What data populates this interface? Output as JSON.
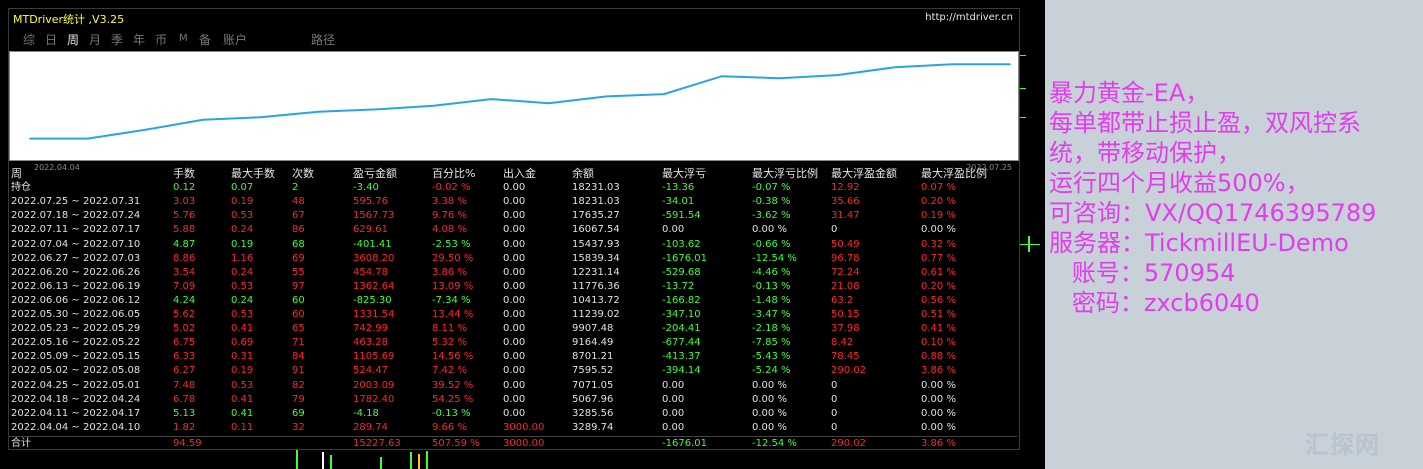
{
  "window": {
    "title": "MTDriver统计 ,V3.25",
    "url": "http://mtdriver.cn"
  },
  "tabs": [
    {
      "label": "综",
      "active": false
    },
    {
      "label": "日",
      "active": false
    },
    {
      "label": "周",
      "active": true
    },
    {
      "label": "月",
      "active": false
    },
    {
      "label": "季",
      "active": false
    },
    {
      "label": "年",
      "active": false
    },
    {
      "label": "币",
      "active": false
    },
    {
      "label": "M",
      "active": false
    },
    {
      "label": "备",
      "active": false
    },
    {
      "label": "账户",
      "active": false
    },
    {
      "label": "路径",
      "active": false
    }
  ],
  "chart_data": {
    "type": "line",
    "x_start_label": "2022.04.04",
    "x_end_label": "2022.07.25",
    "series": [
      {
        "color": "#29a3e6",
        "values": [
          3289.74,
          3285.56,
          5067.96,
          7071.05,
          7595.52,
          8701.21,
          9164.49,
          9907.48,
          11239.02,
          10413.72,
          11776.36,
          12231.14,
          15839.34,
          15437.93,
          16067.54,
          17635.27,
          18231.03,
          18231.03
        ]
      }
    ]
  },
  "table": {
    "headers": [
      "周",
      "手数",
      "最大手数",
      "次数",
      "盈亏金额",
      "百分比%",
      "出入金",
      "余额",
      "最大浮亏",
      "最大浮亏比例",
      "最大浮盈金额",
      "最大浮盈比例"
    ],
    "holding": {
      "label": "持仓",
      "cells": [
        "0.12",
        "0.07",
        "2",
        "-3.40",
        "-0.02 %",
        "0.00",
        "18231.03",
        "-13.36",
        "-0.07 %",
        "12.92",
        "0.07 %"
      ]
    },
    "rows": [
      {
        "week": "2022.07.25 ~ 2022.07.31",
        "cells": [
          "3.03",
          "0.19",
          "48",
          "595.76",
          "3.38 %",
          "0.00",
          "18231.03",
          "-34.01",
          "-0.38 %",
          "35.66",
          "0.20 %"
        ],
        "win": false
      },
      {
        "week": "2022.07.18 ~ 2022.07.24",
        "cells": [
          "5.76",
          "0.53",
          "67",
          "1567.73",
          "9.76 %",
          "0.00",
          "17635.27",
          "-591.54",
          "-3.62 %",
          "31.47",
          "0.19 %"
        ],
        "win": false
      },
      {
        "week": "2022.07.11 ~ 2022.07.17",
        "cells": [
          "5.88",
          "0.24",
          "86",
          "629.61",
          "4.08 %",
          "0.00",
          "16067.54",
          "0.00",
          "0.00 %",
          "0",
          "0.00 %"
        ],
        "win": false
      },
      {
        "week": "2022.07.04 ~ 2022.07.10",
        "cells": [
          "4.87",
          "0.19",
          "68",
          "-401.41",
          "-2.53 %",
          "0.00",
          "15437.93",
          "-103.62",
          "-0.66 %",
          "50.49",
          "0.32 %"
        ],
        "win": true
      },
      {
        "week": "2022.06.27 ~ 2022.07.03",
        "cells": [
          "8.86",
          "1.16",
          "69",
          "3608.20",
          "29.50 %",
          "0.00",
          "15839.34",
          "-1676.01",
          "-12.54 %",
          "96.78",
          "0.77 %"
        ],
        "win": false
      },
      {
        "week": "2022.06.20 ~ 2022.06.26",
        "cells": [
          "3.54",
          "0.24",
          "55",
          "454.78",
          "3.86 %",
          "0.00",
          "12231.14",
          "-529.68",
          "-4.46 %",
          "72.24",
          "0.61 %"
        ],
        "win": false
      },
      {
        "week": "2022.06.13 ~ 2022.06.19",
        "cells": [
          "7.09",
          "0.53",
          "97",
          "1362.64",
          "13.09 %",
          "0.00",
          "11776.36",
          "-13.72",
          "-0.13 %",
          "21.08",
          "0.20 %"
        ],
        "win": false
      },
      {
        "week": "2022.06.06 ~ 2022.06.12",
        "cells": [
          "4.24",
          "0.24",
          "60",
          "-825.30",
          "-7.34 %",
          "0.00",
          "10413.72",
          "-166.82",
          "-1.48 %",
          "63.2",
          "0.56 %"
        ],
        "win": true
      },
      {
        "week": "2022.05.30 ~ 2022.06.05",
        "cells": [
          "5.62",
          "0.53",
          "60",
          "1331.54",
          "13.44 %",
          "0.00",
          "11239.02",
          "-347.10",
          "-3.47 %",
          "50.15",
          "0.51 %"
        ],
        "win": false
      },
      {
        "week": "2022.05.23 ~ 2022.05.29",
        "cells": [
          "5.02",
          "0.41",
          "65",
          "742.99",
          "8.11 %",
          "0.00",
          "9907.48",
          "-204.41",
          "-2.18 %",
          "37.98",
          "0.41 %"
        ],
        "win": false
      },
      {
        "week": "2022.05.16 ~ 2022.05.22",
        "cells": [
          "6.75",
          "0.69",
          "71",
          "463.28",
          "5.32 %",
          "0.00",
          "9164.49",
          "-677.44",
          "-7.85 %",
          "8.42",
          "0.10 %"
        ],
        "win": false
      },
      {
        "week": "2022.05.09 ~ 2022.05.15",
        "cells": [
          "6.33",
          "0.31",
          "84",
          "1105.69",
          "14.56 %",
          "0.00",
          "8701.21",
          "-413.37",
          "-5.43 %",
          "78.45",
          "0.88 %"
        ],
        "win": false
      },
      {
        "week": "2022.05.02 ~ 2022.05.08",
        "cells": [
          "6.27",
          "0.19",
          "91",
          "524.47",
          "7.42 %",
          "0.00",
          "7595.52",
          "-394.14",
          "-5.24 %",
          "290.02",
          "3.86 %"
        ],
        "win": false
      },
      {
        "week": "2022.04.25 ~ 2022.05.01",
        "cells": [
          "7.48",
          "0.53",
          "82",
          "2003.09",
          "39.52 %",
          "0.00",
          "7071.05",
          "0.00",
          "0.00 %",
          "0",
          "0.00 %"
        ],
        "win": false
      },
      {
        "week": "2022.04.18 ~ 2022.04.24",
        "cells": [
          "6.78",
          "0.41",
          "79",
          "1782.40",
          "54.25 %",
          "0.00",
          "5067.96",
          "0.00",
          "0.00 %",
          "0",
          "0.00 %"
        ],
        "win": false
      },
      {
        "week": "2022.04.11 ~ 2022.04.17",
        "cells": [
          "5.13",
          "0.41",
          "69",
          "-4.18",
          "-0.13 %",
          "0.00",
          "3285.56",
          "0.00",
          "0.00 %",
          "0",
          "0.00 %"
        ],
        "win": true
      },
      {
        "week": "2022.04.04 ~ 2022.04.10",
        "cells": [
          "1.82",
          "0.11",
          "32",
          "289.74",
          "9.66 %",
          "3000.00",
          "3289.74",
          "0.00",
          "0.00 %",
          "0",
          "0.00 %"
        ],
        "win": false
      }
    ],
    "total": {
      "label": "合计",
      "cells": [
        "94.59",
        "",
        "",
        "15227.63",
        "507.59 %",
        "3000.00",
        "",
        "-1676.01",
        "-12.54 %",
        "290.02",
        "3.86 %"
      ]
    }
  },
  "colors": {
    "green": "#3cff3c",
    "red": "#ff2626",
    "white": "#e0e0e0",
    "accent_text": "#e23cf0",
    "line": "#29a3e6"
  },
  "annotation": {
    "lines": [
      "暴力黄金-EA，",
      "每单都带止损止盈，双风控系",
      "统，带移动保护，",
      "运行四个月收益500%，",
      "可咨询：VX/QQ1746395789",
      "服务器：TickmillEU-Demo",
      "   账号：570954",
      "   密码：zxcb6040"
    ]
  },
  "watermark": "汇探网"
}
